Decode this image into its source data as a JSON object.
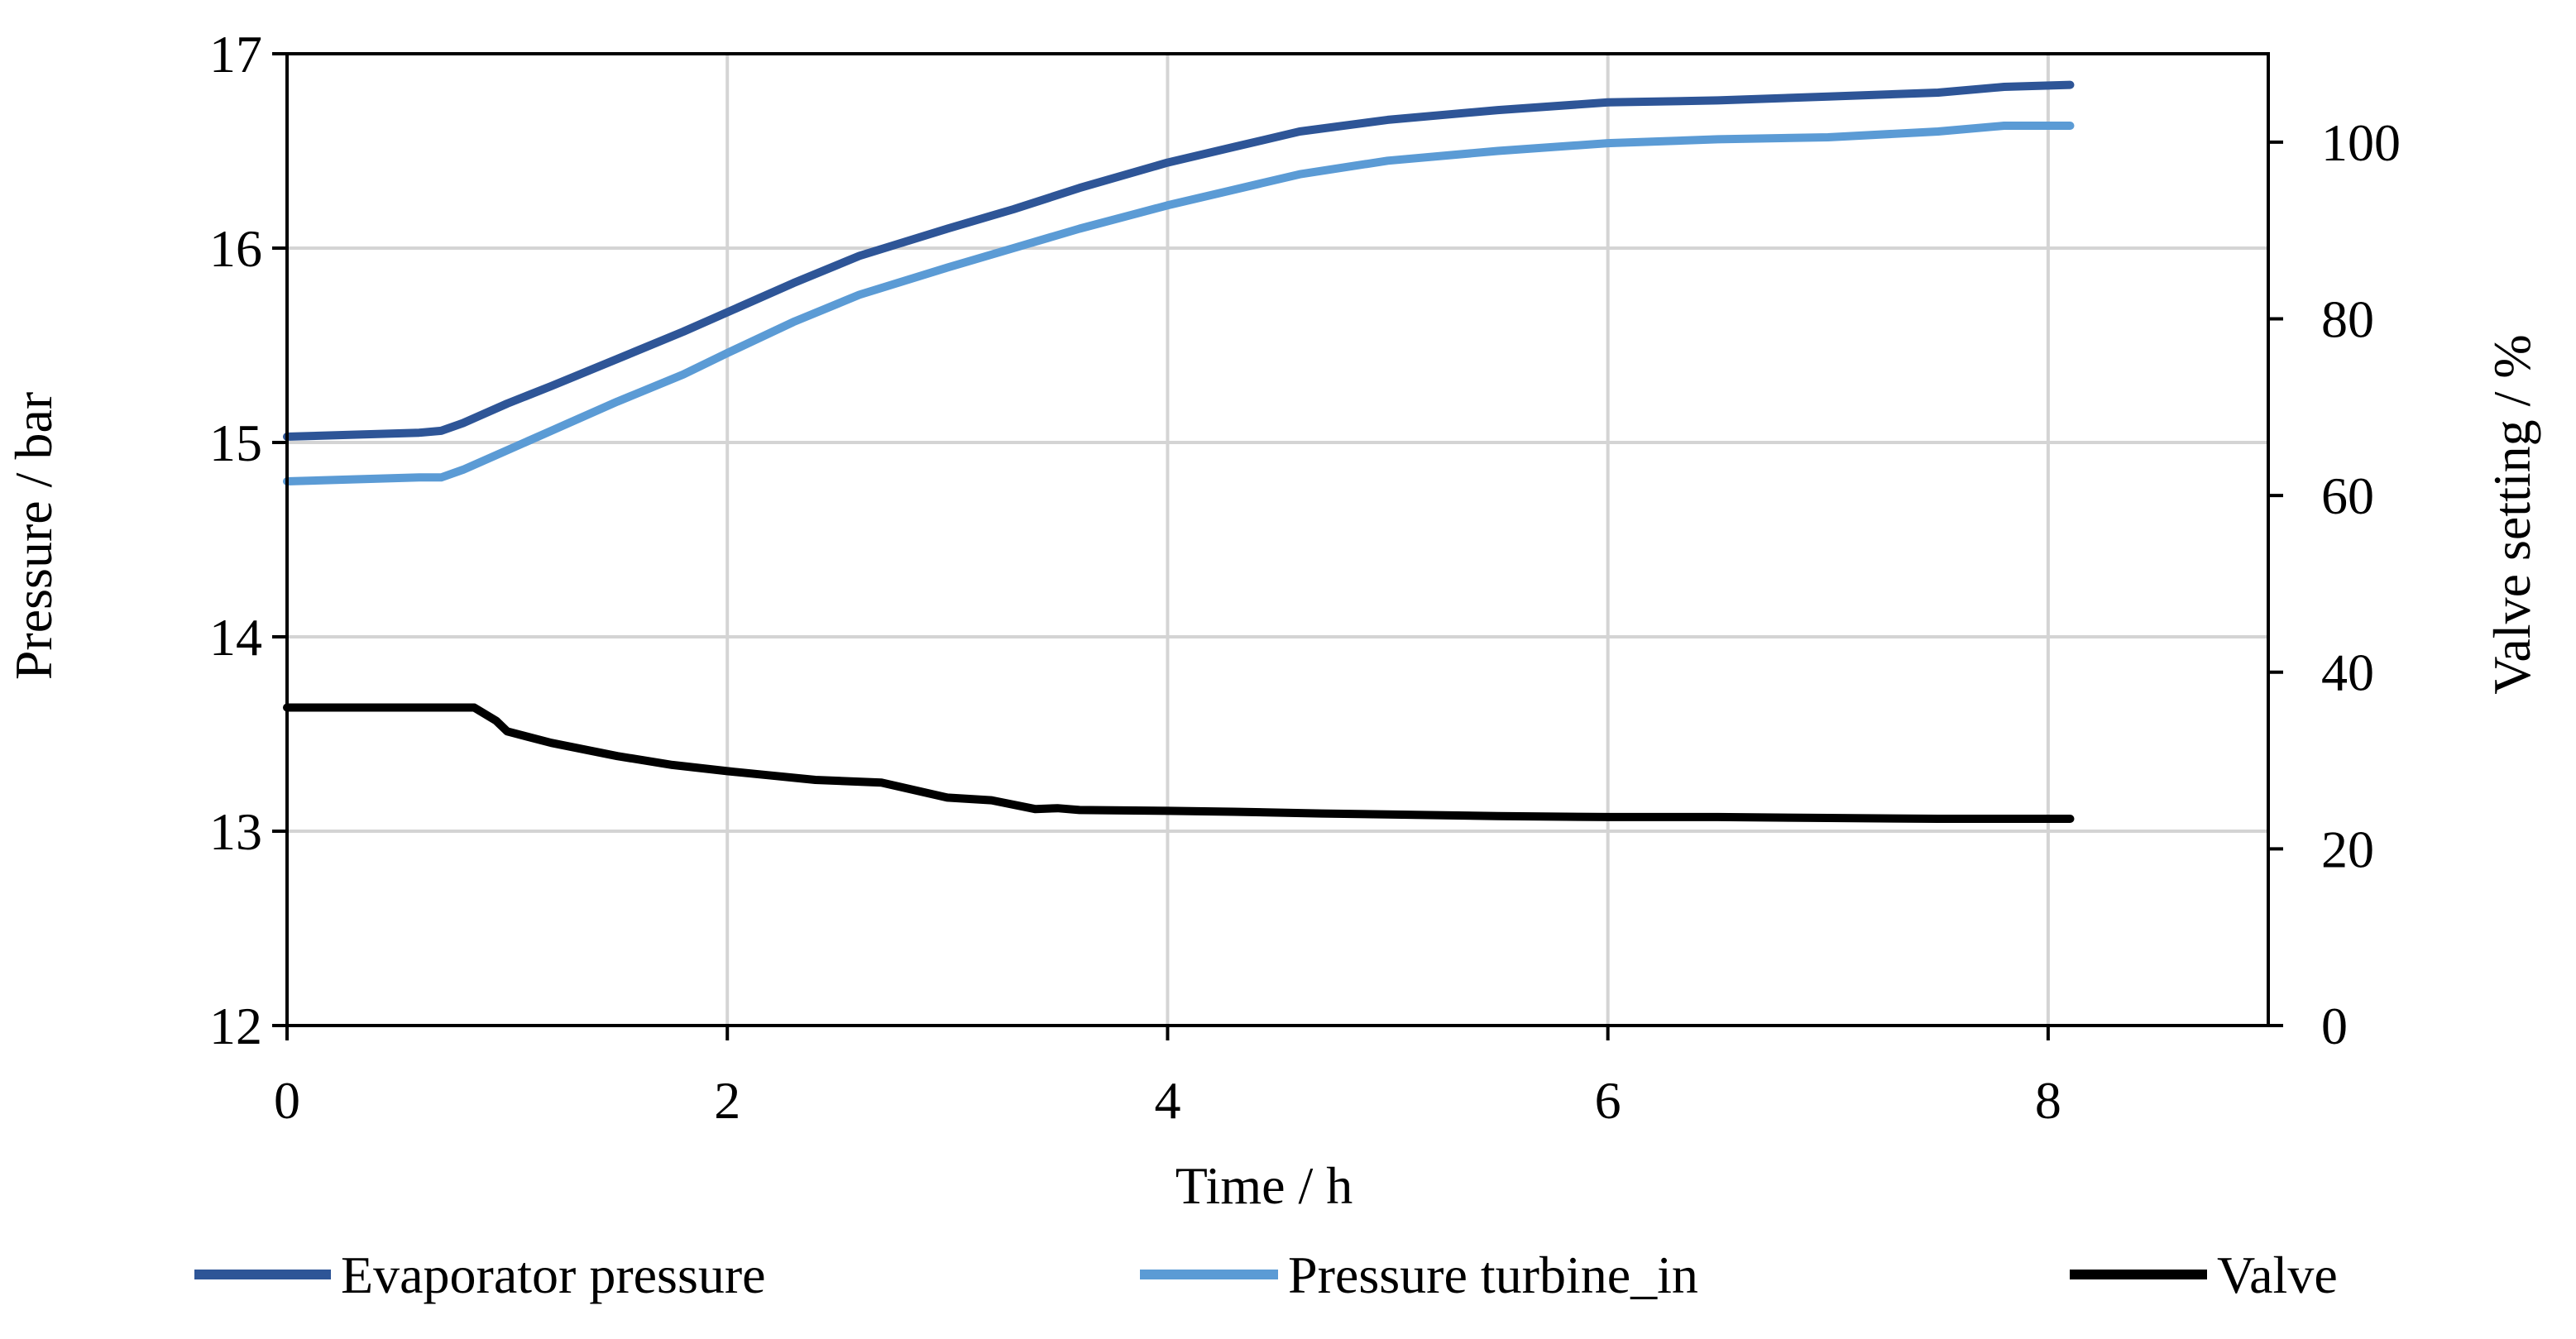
{
  "chart_data": {
    "type": "line",
    "title": "",
    "xlabel": "Time / h",
    "ylabel": "Pressure / bar",
    "y2label": "Valve setting / %",
    "xlim": [
      0,
      9
    ],
    "ylim": [
      12,
      17
    ],
    "y2lim": [
      0,
      110
    ],
    "xticks": [
      "0",
      "2",
      "4",
      "6",
      "8"
    ],
    "xtick_values": [
      0,
      2,
      4,
      6,
      8
    ],
    "yticks": [
      "12",
      "13",
      "14",
      "15",
      "16",
      "17"
    ],
    "ytick_values": [
      12,
      13,
      14,
      15,
      16,
      17
    ],
    "y2ticks": [
      "0",
      "20",
      "40",
      "60",
      "80",
      "100"
    ],
    "y2tick_values": [
      0,
      20,
      40,
      60,
      80,
      100
    ],
    "grid": true,
    "legend_position": "bottom",
    "series": [
      {
        "name": "Evaporator pressure",
        "axis": "left",
        "color": "#2E5597",
        "x": [
          0,
          0.3,
          0.6,
          0.7,
          0.8,
          1.0,
          1.2,
          1.5,
          1.8,
          2.0,
          2.3,
          2.6,
          3.0,
          3.3,
          3.6,
          4.0,
          4.3,
          4.6,
          5.0,
          5.5,
          6.0,
          6.5,
          7.0,
          7.5,
          7.8,
          8.1
        ],
        "values": [
          15.03,
          15.04,
          15.05,
          15.06,
          15.1,
          15.2,
          15.29,
          15.43,
          15.57,
          15.67,
          15.82,
          15.96,
          16.1,
          16.2,
          16.31,
          16.44,
          16.52,
          16.6,
          16.66,
          16.71,
          16.75,
          16.76,
          16.78,
          16.8,
          16.83,
          16.84
        ]
      },
      {
        "name": "Pressure turbine_in",
        "axis": "left",
        "color": "#5B9BD5",
        "x": [
          0,
          0.3,
          0.6,
          0.7,
          0.8,
          1.0,
          1.2,
          1.5,
          1.8,
          2.0,
          2.3,
          2.6,
          3.0,
          3.3,
          3.6,
          4.0,
          4.3,
          4.6,
          5.0,
          5.5,
          6.0,
          6.5,
          7.0,
          7.5,
          7.8,
          8.1
        ],
        "values": [
          14.8,
          14.81,
          14.82,
          14.82,
          14.86,
          14.96,
          15.06,
          15.21,
          15.35,
          15.46,
          15.62,
          15.76,
          15.9,
          16.0,
          16.1,
          16.22,
          16.3,
          16.38,
          16.45,
          16.5,
          16.54,
          16.56,
          16.57,
          16.6,
          16.63,
          16.63
        ]
      },
      {
        "name": "Valve",
        "axis": "right",
        "color": "#000000",
        "x": [
          0,
          0.5,
          0.85,
          0.95,
          1.0,
          1.2,
          1.5,
          1.75,
          2.0,
          2.2,
          2.4,
          2.7,
          3.0,
          3.2,
          3.4,
          3.5,
          3.6,
          4.0,
          4.3,
          4.7,
          5.0,
          5.5,
          6.0,
          6.5,
          7.0,
          7.5,
          8.1
        ],
        "values": [
          36,
          36,
          36,
          34.5,
          33.3,
          32,
          30.5,
          29.5,
          28.8,
          28.3,
          27.8,
          27.5,
          25.8,
          25.5,
          24.5,
          24.6,
          24.4,
          24.3,
          24.2,
          24.0,
          23.9,
          23.7,
          23.6,
          23.6,
          23.5,
          23.4,
          23.4
        ]
      }
    ]
  }
}
